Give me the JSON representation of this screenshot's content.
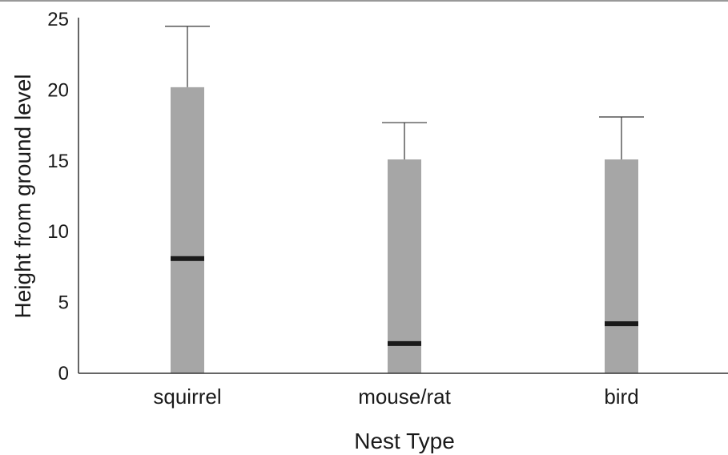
{
  "chart_data": {
    "type": "box",
    "title": "",
    "xlabel": "Nest Type",
    "ylabel": "Height from ground level",
    "ylim": [
      0,
      25
    ],
    "yticks": [
      0,
      5,
      10,
      15,
      20,
      25
    ],
    "categories": [
      "squirrel",
      "mouse/rat",
      "bird"
    ],
    "boxes": [
      {
        "category": "squirrel",
        "q1": 0,
        "median": 8.1,
        "q3": 20.2,
        "whisker_max": 24.5
      },
      {
        "category": "mouse/rat",
        "q1": 0,
        "median": 2.1,
        "q3": 15.1,
        "whisker_max": 17.7
      },
      {
        "category": "bird",
        "q1": 0,
        "median": 3.5,
        "q3": 15.1,
        "whisker_max": 18.1
      }
    ],
    "colors": {
      "box": "#a6a6a6",
      "median": "#1a1a1a",
      "axis": "#333333",
      "whisker": "#333333"
    },
    "grid": false,
    "legend": "none"
  }
}
